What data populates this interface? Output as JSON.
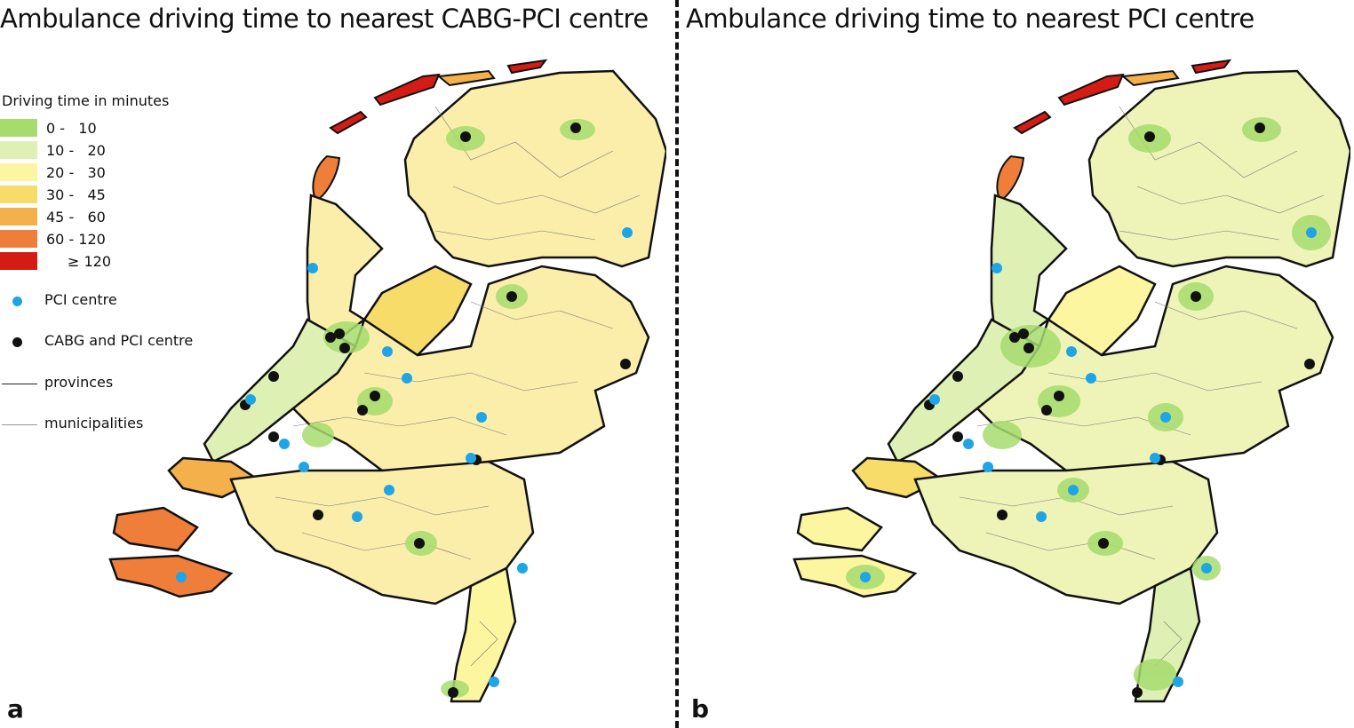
{
  "panels": [
    {
      "id": "a",
      "letter": "a",
      "title": "Ambulance driving time to nearest CABG-PCI centre"
    },
    {
      "id": "b",
      "letter": "b",
      "title": "Ambulance driving time to nearest PCI centre"
    }
  ],
  "legend": {
    "title": "Driving time in minutes",
    "classes": [
      {
        "label": "0 -   10",
        "color": "#a6dc6e"
      },
      {
        "label": "10 -   20",
        "color": "#dff0b4"
      },
      {
        "label": "20 -   30",
        "color": "#fdf6a0"
      },
      {
        "label": "30 -   45",
        "color": "#f7dc6a"
      },
      {
        "label": "45 -   60",
        "color": "#f4b04a"
      },
      {
        "label": "60 - 120",
        "color": "#ef7e3a"
      },
      {
        "label": "≥ 120",
        "color": "#d41c14"
      }
    ],
    "symbols": [
      {
        "label": "PCI centre",
        "icon": "blue-dot-icon",
        "color": "#1fa5e6"
      },
      {
        "label": "CABG and PCI centre",
        "icon": "black-dot-icon",
        "color": "#111111"
      },
      {
        "label": "provinces",
        "icon": "thick-line-icon",
        "color": "#222222"
      },
      {
        "label": "municipalities",
        "icon": "thin-line-icon",
        "color": "#888888"
      }
    ]
  },
  "colors": {
    "mainland_a": "#fbeeaa",
    "mainland_b": "#eef3b8",
    "border": "#111111",
    "municipality": "#777777"
  }
}
